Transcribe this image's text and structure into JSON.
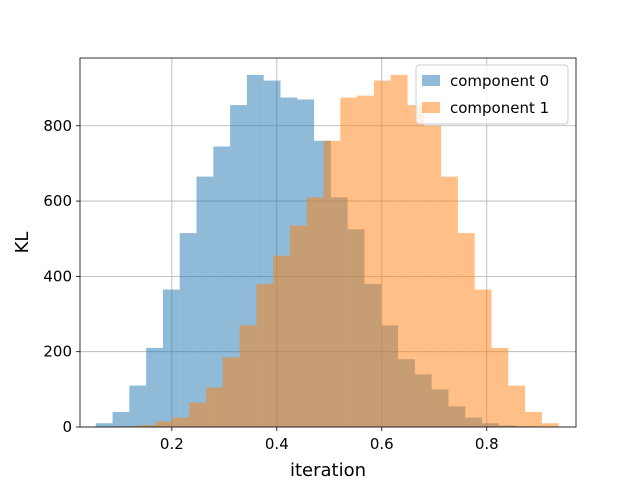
{
  "chart_data": {
    "type": "bar",
    "title": "",
    "xlabel": "iteration",
    "ylabel": "KL",
    "xlim": [
      0.025,
      0.97
    ],
    "ylim": [
      0,
      980
    ],
    "xticks": [
      0.2,
      0.4,
      0.6,
      0.8
    ],
    "xtick_labels": [
      "0.2",
      "0.4",
      "0.6",
      "0.8"
    ],
    "yticks": [
      0,
      200,
      400,
      600,
      800
    ],
    "ytick_labels": [
      "0",
      "200",
      "400",
      "600",
      "800"
    ],
    "grid": true,
    "legend_placement": "top-right",
    "series": [
      {
        "name": "component 0",
        "color": "#1f77b4",
        "opacity": 0.5,
        "bin_edges": [
          0.055,
          0.087,
          0.119,
          0.151,
          0.183,
          0.215,
          0.247,
          0.279,
          0.311,
          0.343,
          0.375,
          0.407,
          0.439,
          0.471,
          0.503,
          0.535,
          0.567,
          0.599,
          0.631,
          0.663,
          0.695,
          0.727,
          0.759,
          0.791,
          0.823,
          0.855,
          0.887
        ],
        "counts": [
          10,
          40,
          110,
          210,
          365,
          515,
          665,
          745,
          855,
          935,
          920,
          875,
          870,
          760,
          610,
          525,
          380,
          270,
          180,
          140,
          100,
          55,
          25,
          10,
          4,
          2
        ]
      },
      {
        "name": "component 1",
        "color": "#ff7f0e",
        "opacity": 0.5,
        "bin_edges": [
          0.105,
          0.137,
          0.169,
          0.201,
          0.233,
          0.265,
          0.297,
          0.329,
          0.361,
          0.393,
          0.425,
          0.457,
          0.489,
          0.521,
          0.553,
          0.585,
          0.617,
          0.649,
          0.681,
          0.713,
          0.745,
          0.777,
          0.809,
          0.841,
          0.873,
          0.905,
          0.937
        ],
        "counts": [
          2,
          5,
          15,
          25,
          65,
          105,
          185,
          270,
          380,
          455,
          535,
          610,
          760,
          875,
          880,
          920,
          935,
          855,
          800,
          665,
          515,
          365,
          210,
          110,
          40,
          10
        ]
      }
    ]
  }
}
